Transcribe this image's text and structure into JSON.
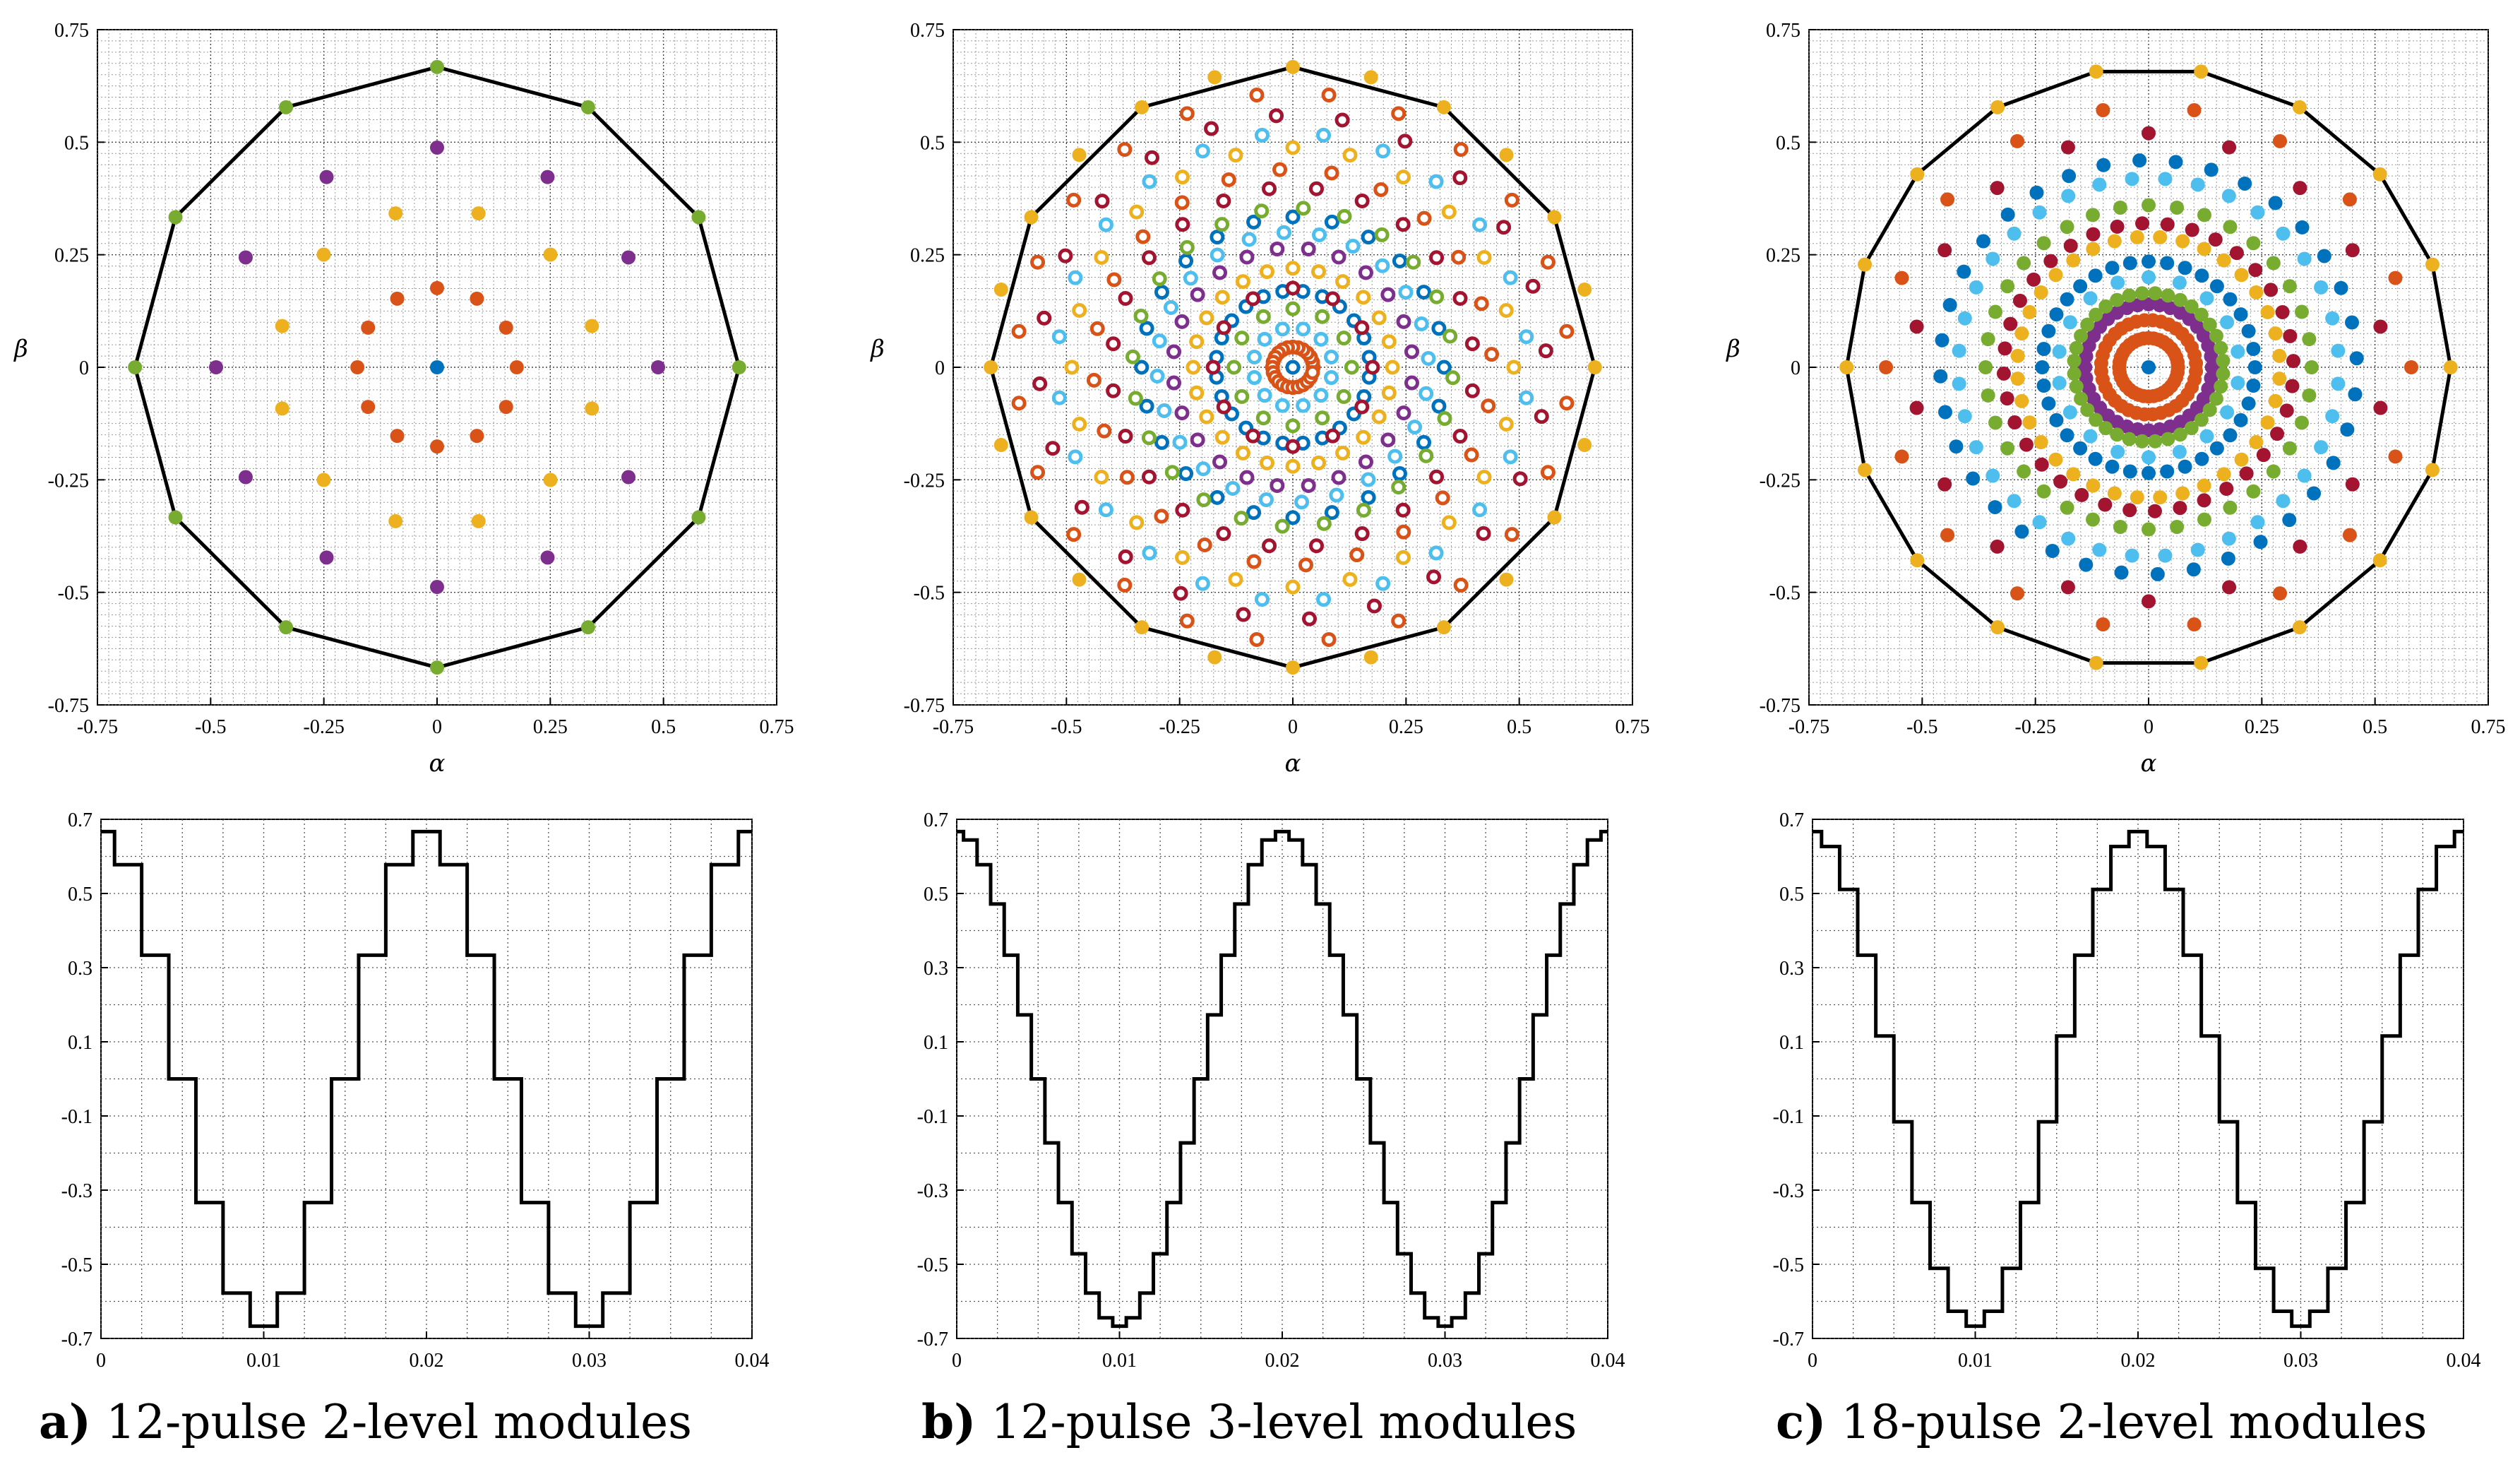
{
  "figure": {
    "panels": [
      "a",
      "b",
      "c"
    ]
  },
  "colors": {
    "blue": "#0072BD",
    "orange": "#D95319",
    "yellow": "#EDB120",
    "purple": "#7E2F8E",
    "green": "#77AC30",
    "cyan": "#4DBEEE",
    "crimson": "#A2142F",
    "boundary": "#000000",
    "grid": "#555555"
  },
  "chart_data": [
    {
      "panel": "a",
      "type": "scatter",
      "title": "",
      "xlabel": "α",
      "ylabel": "β",
      "xlim": [
        -0.75,
        0.75
      ],
      "ylim": [
        -0.75,
        0.75
      ],
      "xticks": [
        "-0.75",
        "-0.5",
        "-0.25",
        "0",
        "0.25",
        "0.5",
        "0.75"
      ],
      "yticks": [
        "0.75",
        "0.5",
        "0.25",
        "0",
        "-0.25",
        "-0.5",
        "-0.75"
      ],
      "grid": "dense-dotted",
      "boundary": {
        "sides": 12,
        "radius": 0.667,
        "phase_deg": 0
      },
      "rings": [
        {
          "radius": 0.0,
          "count": 1,
          "phase_deg": 90,
          "color": "blue",
          "style": "filled"
        },
        {
          "radius": 0.176,
          "count": 12,
          "phase_deg": 30,
          "color": "orange",
          "style": "filled"
        },
        {
          "radius": 0.354,
          "count": 12,
          "phase_deg": 15,
          "color": "yellow",
          "style": "filled"
        },
        {
          "radius": 0.488,
          "count": 12,
          "phase_deg": 0,
          "color": "purple",
          "style": "filled"
        },
        {
          "radius": 0.667,
          "count": 12,
          "phase_deg": 0,
          "color": "green",
          "style": "filled"
        }
      ],
      "caption_letter": "a)",
      "caption_text": " 12-pulse 2-level modules"
    },
    {
      "panel": "b",
      "type": "scatter",
      "title": "",
      "xlabel": "α",
      "ylabel": "β",
      "xlim": [
        -0.75,
        0.75
      ],
      "ylim": [
        -0.75,
        0.75
      ],
      "xticks": [
        "-0.75",
        "-0.5",
        "-0.25",
        "0",
        "0.25",
        "0.5",
        "0.75"
      ],
      "yticks": [
        "0.75",
        "0.5",
        "0.25",
        "0",
        "-0.25",
        "-0.5",
        "-0.75"
      ],
      "grid": "dense-dotted",
      "boundary": {
        "sides": 12,
        "radius": 0.667,
        "phase_deg": 0
      },
      "rings": [
        {
          "radius": 0.0,
          "count": 1,
          "phase_deg": 90,
          "color": "blue",
          "style": "ring"
        },
        {
          "radius": 0.045,
          "count": 24,
          "phase_deg": 0,
          "color": "orange",
          "style": "ring"
        },
        {
          "radius": 0.088,
          "count": 12,
          "phase_deg": 15,
          "color": "cyan",
          "style": "ring"
        },
        {
          "radius": 0.13,
          "count": 12,
          "phase_deg": 0,
          "color": "green",
          "style": "ring"
        },
        {
          "radius": 0.17,
          "count": 24,
          "phase_deg": 7.5,
          "color": "blue",
          "style": "ring"
        },
        {
          "radius": 0.176,
          "count": 12,
          "phase_deg": 30,
          "color": "crimson",
          "style": "ring"
        },
        {
          "radius": 0.22,
          "count": 24,
          "phase_deg": 0,
          "color": "yellow",
          "style": "ring"
        },
        {
          "radius": 0.265,
          "count": 24,
          "phase_deg": 7.5,
          "color": "purple",
          "style": "ring"
        },
        {
          "radius": 0.3,
          "count": 24,
          "phase_deg": 3.75,
          "color": "cyan",
          "style": "ring"
        },
        {
          "radius": 0.334,
          "count": 24,
          "phase_deg": 0,
          "color": "blue",
          "style": "ring"
        },
        {
          "radius": 0.354,
          "count": 24,
          "phase_deg": 11.25,
          "color": "green",
          "style": "ring"
        },
        {
          "radius": 0.4,
          "count": 24,
          "phase_deg": 7.5,
          "color": "crimson",
          "style": "ring"
        },
        {
          "radius": 0.44,
          "count": 24,
          "phase_deg": 3.75,
          "color": "orange",
          "style": "ring"
        },
        {
          "radius": 0.488,
          "count": 24,
          "phase_deg": 0,
          "color": "yellow",
          "style": "ring"
        },
        {
          "radius": 0.52,
          "count": 24,
          "phase_deg": 7.5,
          "color": "cyan",
          "style": "ring"
        },
        {
          "radius": 0.56,
          "count": 24,
          "phase_deg": 3.75,
          "color": "crimson",
          "style": "ring"
        },
        {
          "radius": 0.61,
          "count": 24,
          "phase_deg": 7.5,
          "color": "orange",
          "style": "ring"
        },
        {
          "radius": 0.667,
          "count": 24,
          "phase_deg": 0,
          "color": "yellow",
          "style": "filled"
        }
      ],
      "caption_letter": "b)",
      "caption_text": " 12-pulse 3-level modules"
    },
    {
      "panel": "c",
      "type": "scatter",
      "title": "",
      "xlabel": "α",
      "ylabel": "β",
      "xlim": [
        -0.75,
        0.75
      ],
      "ylim": [
        -0.75,
        0.75
      ],
      "xticks": [
        "-0.75",
        "-0.5",
        "-0.25",
        "0",
        "0.25",
        "0.5",
        "0.75"
      ],
      "yticks": [
        "0.75",
        "0.5",
        "0.25",
        "0",
        "-0.25",
        "-0.5",
        "-0.75"
      ],
      "grid": "dense-dotted",
      "boundary": {
        "sides": 18,
        "radius": 0.667,
        "phase_deg": 0
      },
      "rings": [
        {
          "radius": 0.0,
          "count": 1,
          "phase_deg": 90,
          "color": "blue",
          "style": "filled"
        },
        {
          "radius": 0.065,
          "count": 36,
          "phase_deg": 0,
          "color": "orange",
          "style": "filled"
        },
        {
          "radius": 0.105,
          "count": 36,
          "phase_deg": 5,
          "color": "orange",
          "style": "filled"
        },
        {
          "radius": 0.14,
          "count": 36,
          "phase_deg": 0,
          "color": "purple",
          "style": "filled"
        },
        {
          "radius": 0.165,
          "count": 36,
          "phase_deg": 5,
          "color": "green",
          "style": "filled"
        },
        {
          "radius": 0.2,
          "count": 18,
          "phase_deg": 10,
          "color": "cyan",
          "style": "filled"
        },
        {
          "radius": 0.235,
          "count": 36,
          "phase_deg": 0,
          "color": "blue",
          "style": "filled"
        },
        {
          "radius": 0.29,
          "count": 36,
          "phase_deg": 5,
          "color": "yellow",
          "style": "filled"
        },
        {
          "radius": 0.32,
          "count": 36,
          "phase_deg": 2.5,
          "color": "crimson",
          "style": "filled"
        },
        {
          "radius": 0.36,
          "count": 36,
          "phase_deg": 0,
          "color": "green",
          "style": "filled"
        },
        {
          "radius": 0.42,
          "count": 36,
          "phase_deg": 5,
          "color": "cyan",
          "style": "filled"
        },
        {
          "radius": 0.46,
          "count": 36,
          "phase_deg": 2.5,
          "color": "blue",
          "style": "filled"
        },
        {
          "radius": 0.52,
          "count": 18,
          "phase_deg": 10,
          "color": "crimson",
          "style": "filled"
        },
        {
          "radius": 0.58,
          "count": 18,
          "phase_deg": 0,
          "color": "orange",
          "style": "filled"
        },
        {
          "radius": 0.667,
          "count": 18,
          "phase_deg": 0,
          "color": "yellow",
          "style": "filled"
        }
      ],
      "caption_letter": "c)",
      "caption_text": " 18-pulse 2-level modules"
    },
    {
      "panel": "a",
      "type": "line",
      "title": "",
      "xlabel": "",
      "ylabel": "",
      "xlim": [
        0,
        0.04
      ],
      "ylim": [
        -0.7,
        0.7
      ],
      "xticks": [
        "0",
        "0.01",
        "0.02",
        "0.03",
        "0.04"
      ],
      "yticks": [
        "0.7",
        "0.5",
        "0.3",
        "0.1",
        "-0.1",
        "-0.3",
        "-0.5",
        "-0.7"
      ],
      "grid": "dotted",
      "waveform": {
        "levels": [
          0.667,
          0.577,
          0.333,
          0.0,
          -0.333,
          -0.577,
          -0.667
        ],
        "frequency_hz": 50,
        "steps_per_cycle": 12
      }
    },
    {
      "panel": "b",
      "type": "line",
      "title": "",
      "xlabel": "",
      "ylabel": "",
      "xlim": [
        0,
        0.04
      ],
      "ylim": [
        -0.7,
        0.7
      ],
      "xticks": [
        "0",
        "0.01",
        "0.02",
        "0.03",
        "0.04"
      ],
      "yticks": [
        "0.7",
        "0.5",
        "0.3",
        "0.1",
        "-0.1",
        "-0.3",
        "-0.5",
        "-0.7"
      ],
      "grid": "dotted",
      "waveform": {
        "amplitude": 0.667,
        "frequency_hz": 50,
        "steps_per_cycle": 24
      }
    },
    {
      "panel": "c",
      "type": "line",
      "title": "",
      "xlabel": "",
      "ylabel": "",
      "xlim": [
        0,
        0.04
      ],
      "ylim": [
        -0.7,
        0.7
      ],
      "xticks": [
        "0",
        "0.01",
        "0.02",
        "0.03",
        "0.04"
      ],
      "yticks": [
        "0.7",
        "0.5",
        "0.3",
        "0.1",
        "-0.1",
        "-0.3",
        "-0.5",
        "-0.7"
      ],
      "grid": "dotted",
      "waveform": {
        "amplitude": 0.667,
        "frequency_hz": 50,
        "steps_per_cycle": 18
      }
    }
  ]
}
